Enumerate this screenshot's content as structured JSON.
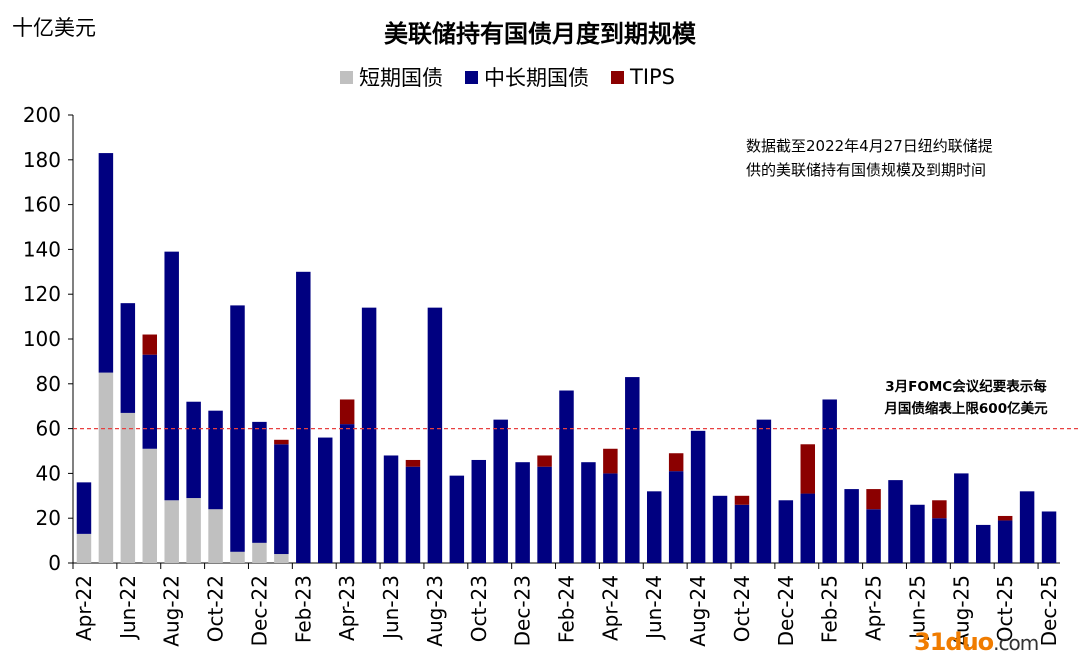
{
  "chart_data": {
    "type": "bar",
    "stacked": true,
    "title": "美联储持有国债月度到期规模",
    "ylabel": "十亿美元",
    "ylim": [
      0,
      200
    ],
    "yticks": [
      0,
      20,
      40,
      60,
      80,
      100,
      120,
      140,
      160,
      180,
      200
    ],
    "legend_position": "top",
    "categories": [
      "Apr-22",
      "May-22",
      "Jun-22",
      "Jul-22",
      "Aug-22",
      "Sep-22",
      "Oct-22",
      "Nov-22",
      "Dec-22",
      "Jan-23",
      "Feb-23",
      "Mar-23",
      "Apr-23",
      "May-23",
      "Jun-23",
      "Jul-23",
      "Aug-23",
      "Sep-23",
      "Oct-23",
      "Nov-23",
      "Dec-23",
      "Jan-24",
      "Feb-24",
      "Mar-24",
      "Apr-24",
      "May-24",
      "Jun-24",
      "Jul-24",
      "Aug-24",
      "Sep-24",
      "Oct-24",
      "Nov-24",
      "Dec-24",
      "Jan-25",
      "Feb-25",
      "Mar-25",
      "Apr-25",
      "May-25",
      "Jun-25",
      "Jul-25",
      "Aug-25",
      "Sep-25",
      "Oct-25",
      "Nov-25",
      "Dec-25"
    ],
    "tick_labels": [
      "Apr-22",
      "Jun-22",
      "Aug-22",
      "Oct-22",
      "Dec-22",
      "Feb-23",
      "Apr-23",
      "Jun-23",
      "Aug-23",
      "Oct-23",
      "Dec-23",
      "Feb-24",
      "Apr-24",
      "Jun-24",
      "Aug-24",
      "Oct-24",
      "Dec-24",
      "Feb-25",
      "Apr-25",
      "Jun-25",
      "Aug-25",
      "Oct-25",
      "Dec-25"
    ],
    "series": [
      {
        "name": "短期国债",
        "color": "#c0c0c0",
        "values": [
          13,
          85,
          67,
          51,
          28,
          29,
          24,
          5,
          9,
          4,
          0,
          0,
          0,
          0,
          0,
          0,
          0,
          0,
          0,
          0,
          0,
          0,
          0,
          0,
          0,
          0,
          0,
          0,
          0,
          0,
          0,
          0,
          0,
          0,
          0,
          0,
          0,
          0,
          0,
          0,
          0,
          0,
          0,
          0,
          0
        ]
      },
      {
        "name": "中长期国债",
        "color": "#000080",
        "values": [
          23,
          98,
          49,
          42,
          111,
          43,
          44,
          110,
          54,
          49,
          130,
          56,
          62,
          114,
          48,
          43,
          114,
          39,
          46,
          64,
          45,
          43,
          77,
          45,
          40,
          83,
          32,
          41,
          59,
          30,
          26,
          64,
          28,
          31,
          73,
          33,
          24,
          37,
          26,
          20,
          40,
          17,
          19,
          32,
          23
        ]
      },
      {
        "name": "TIPS",
        "color": "#8b0000",
        "values": [
          0,
          0,
          0,
          9,
          0,
          0,
          0,
          0,
          0,
          2,
          0,
          0,
          11,
          0,
          0,
          3,
          0,
          0,
          0,
          0,
          0,
          5,
          0,
          0,
          11,
          0,
          0,
          8,
          0,
          0,
          4,
          0,
          0,
          22,
          0,
          0,
          9,
          0,
          0,
          8,
          0,
          0,
          2,
          0,
          0
        ]
      }
    ],
    "reference_line": {
      "value": 60,
      "color": "#e84040",
      "style": "dashed"
    }
  },
  "annotations": {
    "data_note_line1": "数据截至2022年4月27日纽约联储提",
    "data_note_line2": "供的美联储持有国债规模及到期时间",
    "cap_note_line1": "3月FOMC会议纪要表示每",
    "cap_note_line2": "月国债缩表上限600亿美元"
  },
  "watermark": {
    "prefix": "31duo",
    "suffix": ".com"
  }
}
